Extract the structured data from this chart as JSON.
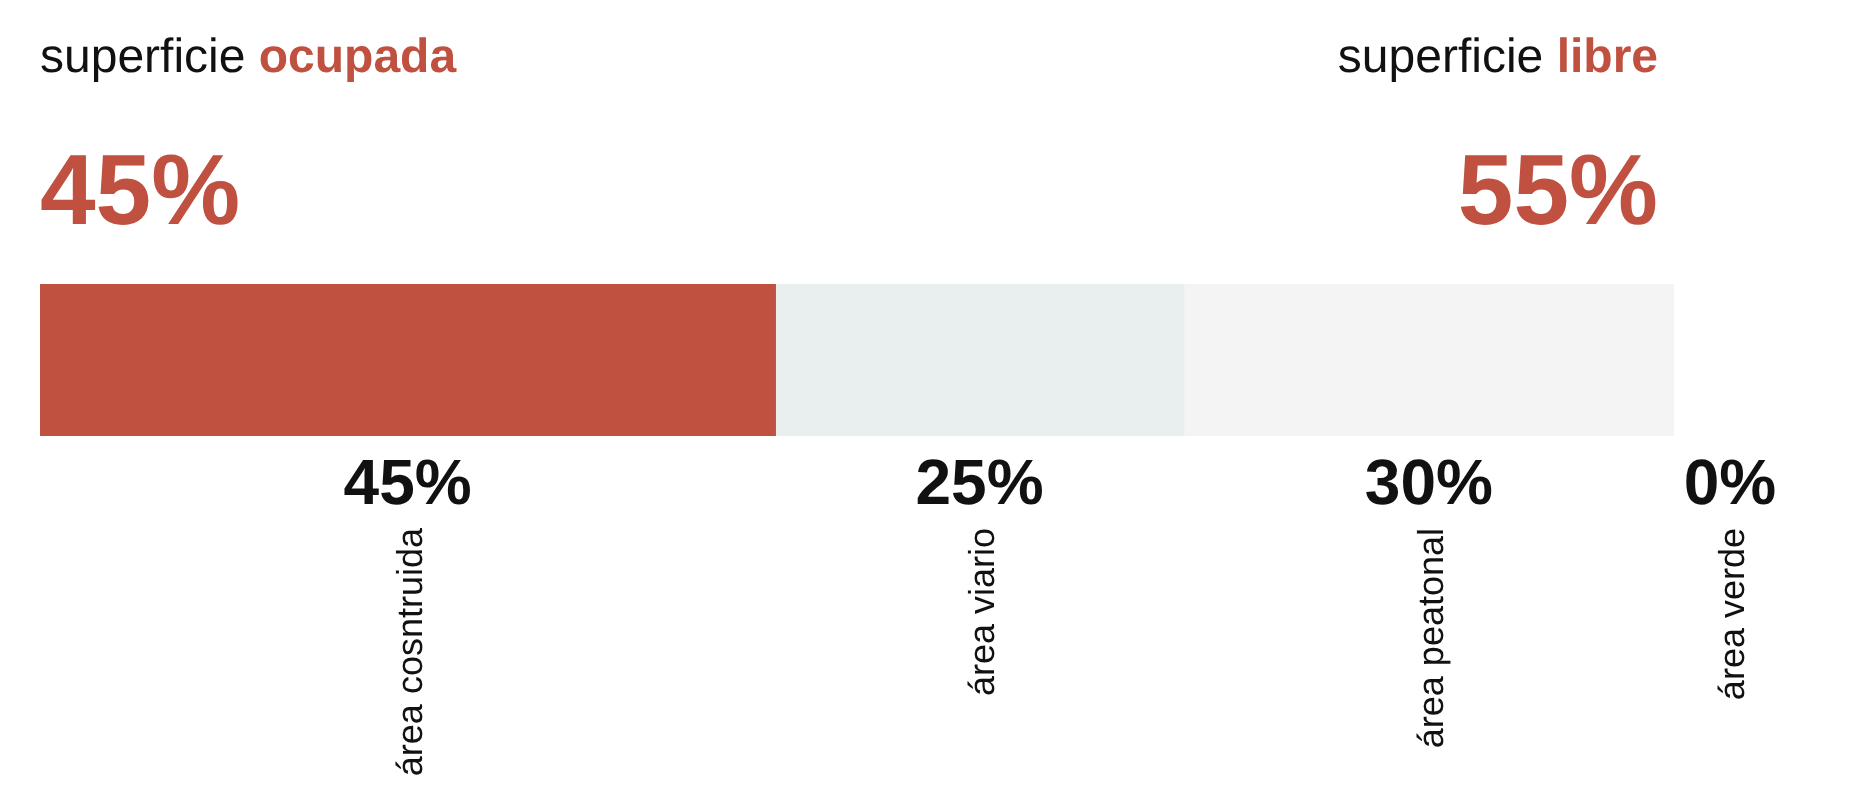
{
  "chart_data": {
    "type": "bar",
    "orientation": "horizontal",
    "stacked": true,
    "categories": [
      null
    ],
    "series": [
      {
        "name": "área cosntruida",
        "color": "#c0503f",
        "values": [
          45
        ],
        "value_labels": [
          "45%"
        ]
      },
      {
        "name": "área viario",
        "color": "#e9efef",
        "values": [
          25
        ],
        "value_labels": [
          "25%"
        ]
      },
      {
        "name": "área peatonal",
        "color": "#f4f4f4",
        "values": [
          30
        ],
        "value_labels": [
          "30%"
        ]
      },
      {
        "name": "área verde",
        "values": [
          0
        ],
        "value_labels": [
          "0%"
        ]
      }
    ],
    "legend": false,
    "annotations": [
      "superficie ocupada",
      "45%",
      "superficie libre",
      "55%"
    ]
  }
}
